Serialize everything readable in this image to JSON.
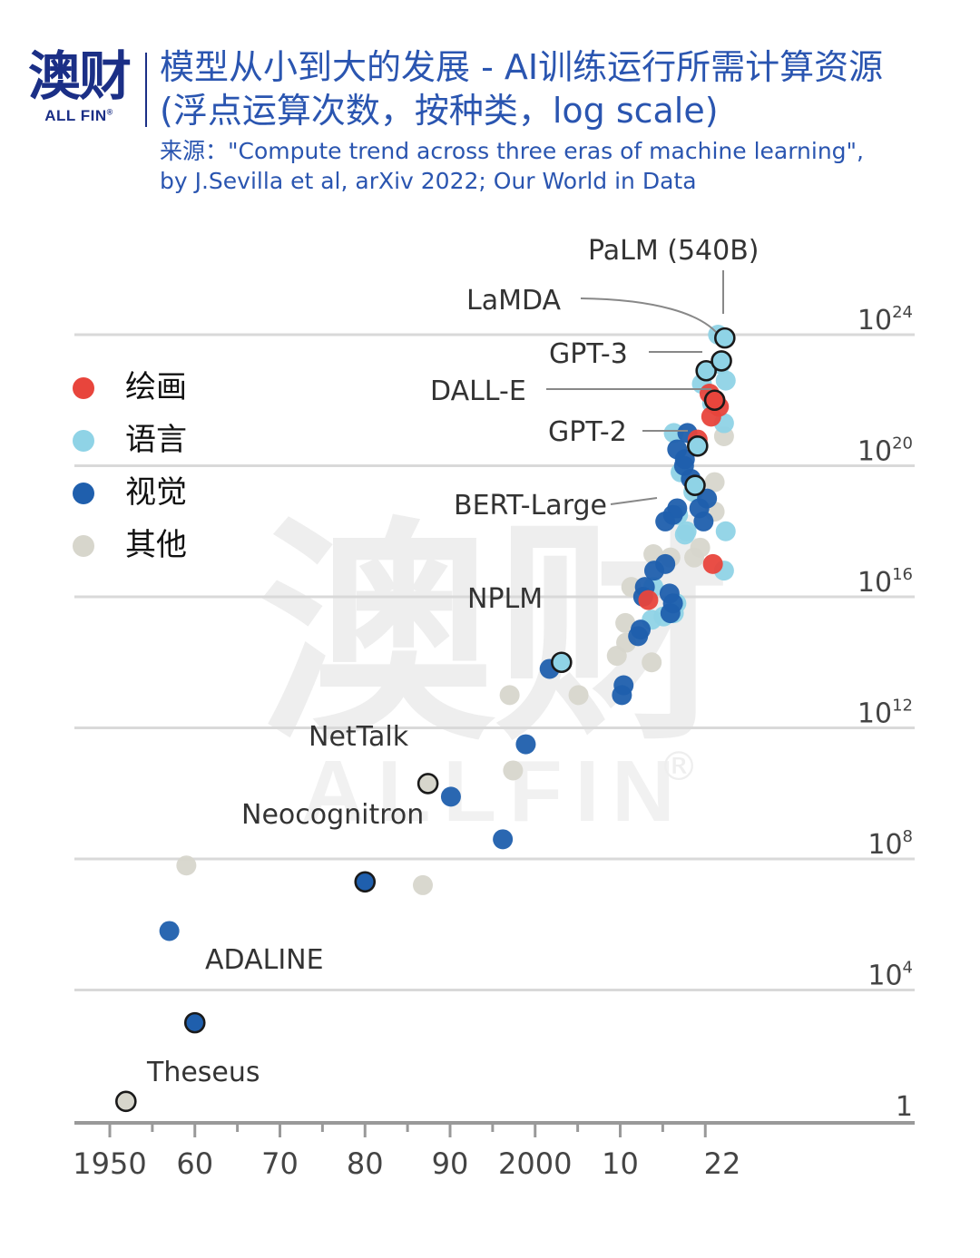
{
  "header": {
    "logo_cn": "澳财",
    "logo_en": "ALL FIN",
    "logo_mark": "®",
    "title_line1": "模型从小到大的发展 - AI训练运行所需计算资源",
    "title_line2": "(浮点运算次数，按种类，log scale)",
    "source_line1": "来源：\"Compute trend across three eras of machine learning\",",
    "source_line2": "by J.Sevilla et al, arXiv 2022; Our World in Data"
  },
  "watermark": {
    "cn": "澳财",
    "en": "ALLFIN",
    "mark": "®"
  },
  "colors": {
    "drawing": "#e8453c",
    "language": "#8fd3e6",
    "vision": "#1f5fad",
    "other": "#d7d6cc",
    "axis": "#999999",
    "grid": "#d9d9d9"
  },
  "legend": [
    {
      "key": "drawing",
      "label": "绘画"
    },
    {
      "key": "language",
      "label": "语言"
    },
    {
      "key": "vision",
      "label": "视觉"
    },
    {
      "key": "other",
      "label": "其他"
    }
  ],
  "chart_data": {
    "type": "scatter",
    "title": "模型从小到大的发展 - AI训练运行所需计算资源",
    "subtitle": "(浮点运算次数，按种类，log scale)",
    "x_label": "",
    "y_label": "",
    "x_range": [
      1950,
      2022
    ],
    "y_scale": "log10",
    "y_range_log10": [
      0,
      24
    ],
    "grid": "horizontal",
    "legend_position": "left",
    "x_ticks": [
      {
        "value": 1950,
        "label": "1950"
      },
      {
        "value": 1960,
        "label": "60"
      },
      {
        "value": 1970,
        "label": "70"
      },
      {
        "value": 1980,
        "label": "80"
      },
      {
        "value": 1990,
        "label": "90"
      },
      {
        "value": 2000,
        "label": "2000"
      },
      {
        "value": 2010,
        "label": "10"
      },
      {
        "value": 2022,
        "label": "22"
      }
    ],
    "y_ticks": [
      {
        "log10": 0,
        "base": "1",
        "exp": ""
      },
      {
        "log10": 4,
        "base": "10",
        "exp": "4"
      },
      {
        "log10": 8,
        "base": "10",
        "exp": "8"
      },
      {
        "log10": 12,
        "base": "10",
        "exp": "12"
      },
      {
        "log10": 16,
        "base": "10",
        "exp": "16"
      },
      {
        "log10": 20,
        "base": "10",
        "exp": "20"
      },
      {
        "log10": 24,
        "base": "10",
        "exp": "24"
      }
    ],
    "series": [
      {
        "name": "绘画",
        "key": "drawing",
        "points": [
          {
            "x": 2013.3,
            "y": 15.9
          },
          {
            "x": 2020.9,
            "y": 17.0
          },
          {
            "x": 2020.7,
            "y": 21.5
          },
          {
            "x": 2021.2,
            "y": 22.0
          },
          {
            "x": 2021.6,
            "y": 21.8
          },
          {
            "x": 2020.5,
            "y": 22.2
          },
          {
            "x": 2019.1,
            "y": 20.8
          }
        ]
      },
      {
        "name": "语言",
        "key": "language",
        "points": [
          {
            "x": 2003.1,
            "y": 14.0
          },
          {
            "x": 2013.7,
            "y": 15.3
          },
          {
            "x": 2016.3,
            "y": 15.5
          },
          {
            "x": 2016.6,
            "y": 15.8
          },
          {
            "x": 2017.8,
            "y": 18.0
          },
          {
            "x": 2018.6,
            "y": 19.2
          },
          {
            "x": 2019.1,
            "y": 20.6
          },
          {
            "x": 2020.1,
            "y": 22.9
          },
          {
            "x": 2020.8,
            "y": 21.9
          },
          {
            "x": 2021.8,
            "y": 23.1
          },
          {
            "x": 2021.5,
            "y": 24.0
          },
          {
            "x": 2016.3,
            "y": 21.0
          },
          {
            "x": 2017.1,
            "y": 19.8
          },
          {
            "x": 2019.6,
            "y": 22.5
          },
          {
            "x": 2022.4,
            "y": 22.6
          },
          {
            "x": 2022.2,
            "y": 21.3
          },
          {
            "x": 2022.4,
            "y": 18.0
          },
          {
            "x": 2022.2,
            "y": 16.8
          },
          {
            "x": 2017.6,
            "y": 17.9
          },
          {
            "x": 2016.8,
            "y": 18.5
          },
          {
            "x": 2013.9,
            "y": 16.3
          },
          {
            "x": 2015.1,
            "y": 15.4
          }
        ]
      },
      {
        "name": "视觉",
        "key": "vision",
        "points": [
          {
            "x": 1957.0,
            "y": 5.8
          },
          {
            "x": 1960.0,
            "y": 3.0
          },
          {
            "x": 1980.0,
            "y": 7.3
          },
          {
            "x": 1990.1,
            "y": 9.9
          },
          {
            "x": 1996.2,
            "y": 8.6
          },
          {
            "x": 1998.9,
            "y": 11.5
          },
          {
            "x": 2001.7,
            "y": 13.8
          },
          {
            "x": 2010.2,
            "y": 13.0
          },
          {
            "x": 2010.4,
            "y": 13.3
          },
          {
            "x": 2012.1,
            "y": 14.8
          },
          {
            "x": 2012.4,
            "y": 15.0
          },
          {
            "x": 2012.9,
            "y": 16.3
          },
          {
            "x": 2014.0,
            "y": 16.8
          },
          {
            "x": 2015.3,
            "y": 17.0
          },
          {
            "x": 2015.9,
            "y": 15.5
          },
          {
            "x": 2016.2,
            "y": 15.8
          },
          {
            "x": 2016.7,
            "y": 18.7
          },
          {
            "x": 2017.5,
            "y": 20.0
          },
          {
            "x": 2017.9,
            "y": 21.0
          },
          {
            "x": 2018.3,
            "y": 19.6
          },
          {
            "x": 2019.3,
            "y": 18.7
          },
          {
            "x": 2019.8,
            "y": 18.3
          },
          {
            "x": 2020.2,
            "y": 19.0
          },
          {
            "x": 2016.2,
            "y": 18.5
          },
          {
            "x": 2015.3,
            "y": 18.3
          },
          {
            "x": 2016.7,
            "y": 20.5
          },
          {
            "x": 2017.6,
            "y": 20.2
          },
          {
            "x": 2015.8,
            "y": 16.1
          },
          {
            "x": 2012.7,
            "y": 16.0
          }
        ]
      },
      {
        "name": "其他",
        "key": "other",
        "points": [
          {
            "x": 1959.0,
            "y": 7.8
          },
          {
            "x": 1986.8,
            "y": 7.2
          },
          {
            "x": 1997.4,
            "y": 10.7
          },
          {
            "x": 1997.0,
            "y": 13.0
          },
          {
            "x": 2005.1,
            "y": 13.0
          },
          {
            "x": 2009.6,
            "y": 14.2
          },
          {
            "x": 2010.7,
            "y": 14.6
          },
          {
            "x": 2010.6,
            "y": 15.2
          },
          {
            "x": 2013.7,
            "y": 14.0
          },
          {
            "x": 2011.3,
            "y": 16.3
          },
          {
            "x": 2018.7,
            "y": 17.2
          },
          {
            "x": 2019.4,
            "y": 17.5
          },
          {
            "x": 2021.1,
            "y": 18.6
          },
          {
            "x": 2021.1,
            "y": 19.5
          },
          {
            "x": 2022.2,
            "y": 20.9
          },
          {
            "x": 2015.9,
            "y": 17.2
          },
          {
            "x": 2013.9,
            "y": 17.3
          }
        ]
      }
    ],
    "highlighted": [
      {
        "label": "Theseus",
        "key": "other",
        "x": 1951.9,
        "y": 0.6,
        "label_side": "right"
      },
      {
        "label": "ADALINE",
        "key": "vision",
        "x": 1960.0,
        "y": 3.0,
        "label_side": "above"
      },
      {
        "label": "Neocognitron",
        "key": "vision",
        "x": 1980.0,
        "y": 7.3,
        "label_side": "above"
      },
      {
        "label": "NetTalk",
        "key": "other",
        "x": 1987.4,
        "y": 10.3,
        "label_side": "left"
      },
      {
        "label": "NPLM",
        "key": "language",
        "x": 2003.1,
        "y": 14.0,
        "label_side": "above"
      },
      {
        "label": "BERT-Large",
        "key": "language",
        "x": 2018.8,
        "y": 19.4,
        "label_side": "left"
      },
      {
        "label": "GPT-2",
        "key": "language",
        "x": 2019.1,
        "y": 20.6,
        "label_side": "left"
      },
      {
        "label": "DALL-E",
        "key": "drawing",
        "x": 2021.1,
        "y": 22.0,
        "label_side": "left"
      },
      {
        "label": "GPT-3",
        "key": "language",
        "x": 2020.1,
        "y": 22.9,
        "label_side": "left"
      },
      {
        "label": "LaMDA",
        "key": "language",
        "x": 2021.9,
        "y": 23.2,
        "label_side": "left"
      },
      {
        "label": "PaLM (540B)",
        "key": "language",
        "x": 2022.3,
        "y": 23.9,
        "label_side": "above"
      }
    ]
  }
}
